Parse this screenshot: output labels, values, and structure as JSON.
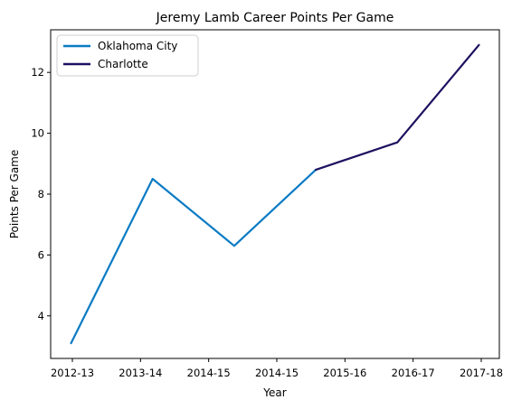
{
  "chart_data": {
    "type": "line",
    "title": "Jeremy Lamb Career Points Per Game",
    "xlabel": "Year",
    "ylabel": "Points Per Game",
    "categories": [
      "2012-13",
      "2013-14",
      "2014-15",
      "2014-15",
      "2015-16",
      "2016-17",
      "2017-18"
    ],
    "yticks": [
      4,
      6,
      8,
      10,
      12
    ],
    "ylim": [
      2.6,
      13.4
    ],
    "grid": false,
    "legend_position": "top-left",
    "series": [
      {
        "name": "Oklahoma City",
        "color": "#0A7BC4",
        "points": [
          {
            "x": 0.0,
            "y": 3.1
          },
          {
            "x": 1.0,
            "y": 8.5
          },
          {
            "x": 2.0,
            "y": 6.3
          },
          {
            "x": 3.0,
            "y": 8.8
          }
        ]
      },
      {
        "name": "Charlotte",
        "color": "#1D1160",
        "points": [
          {
            "x": 3.0,
            "y": 8.8
          },
          {
            "x": 4.0,
            "y": 9.7
          },
          {
            "x": 5.0,
            "y": 12.9
          }
        ]
      }
    ]
  }
}
